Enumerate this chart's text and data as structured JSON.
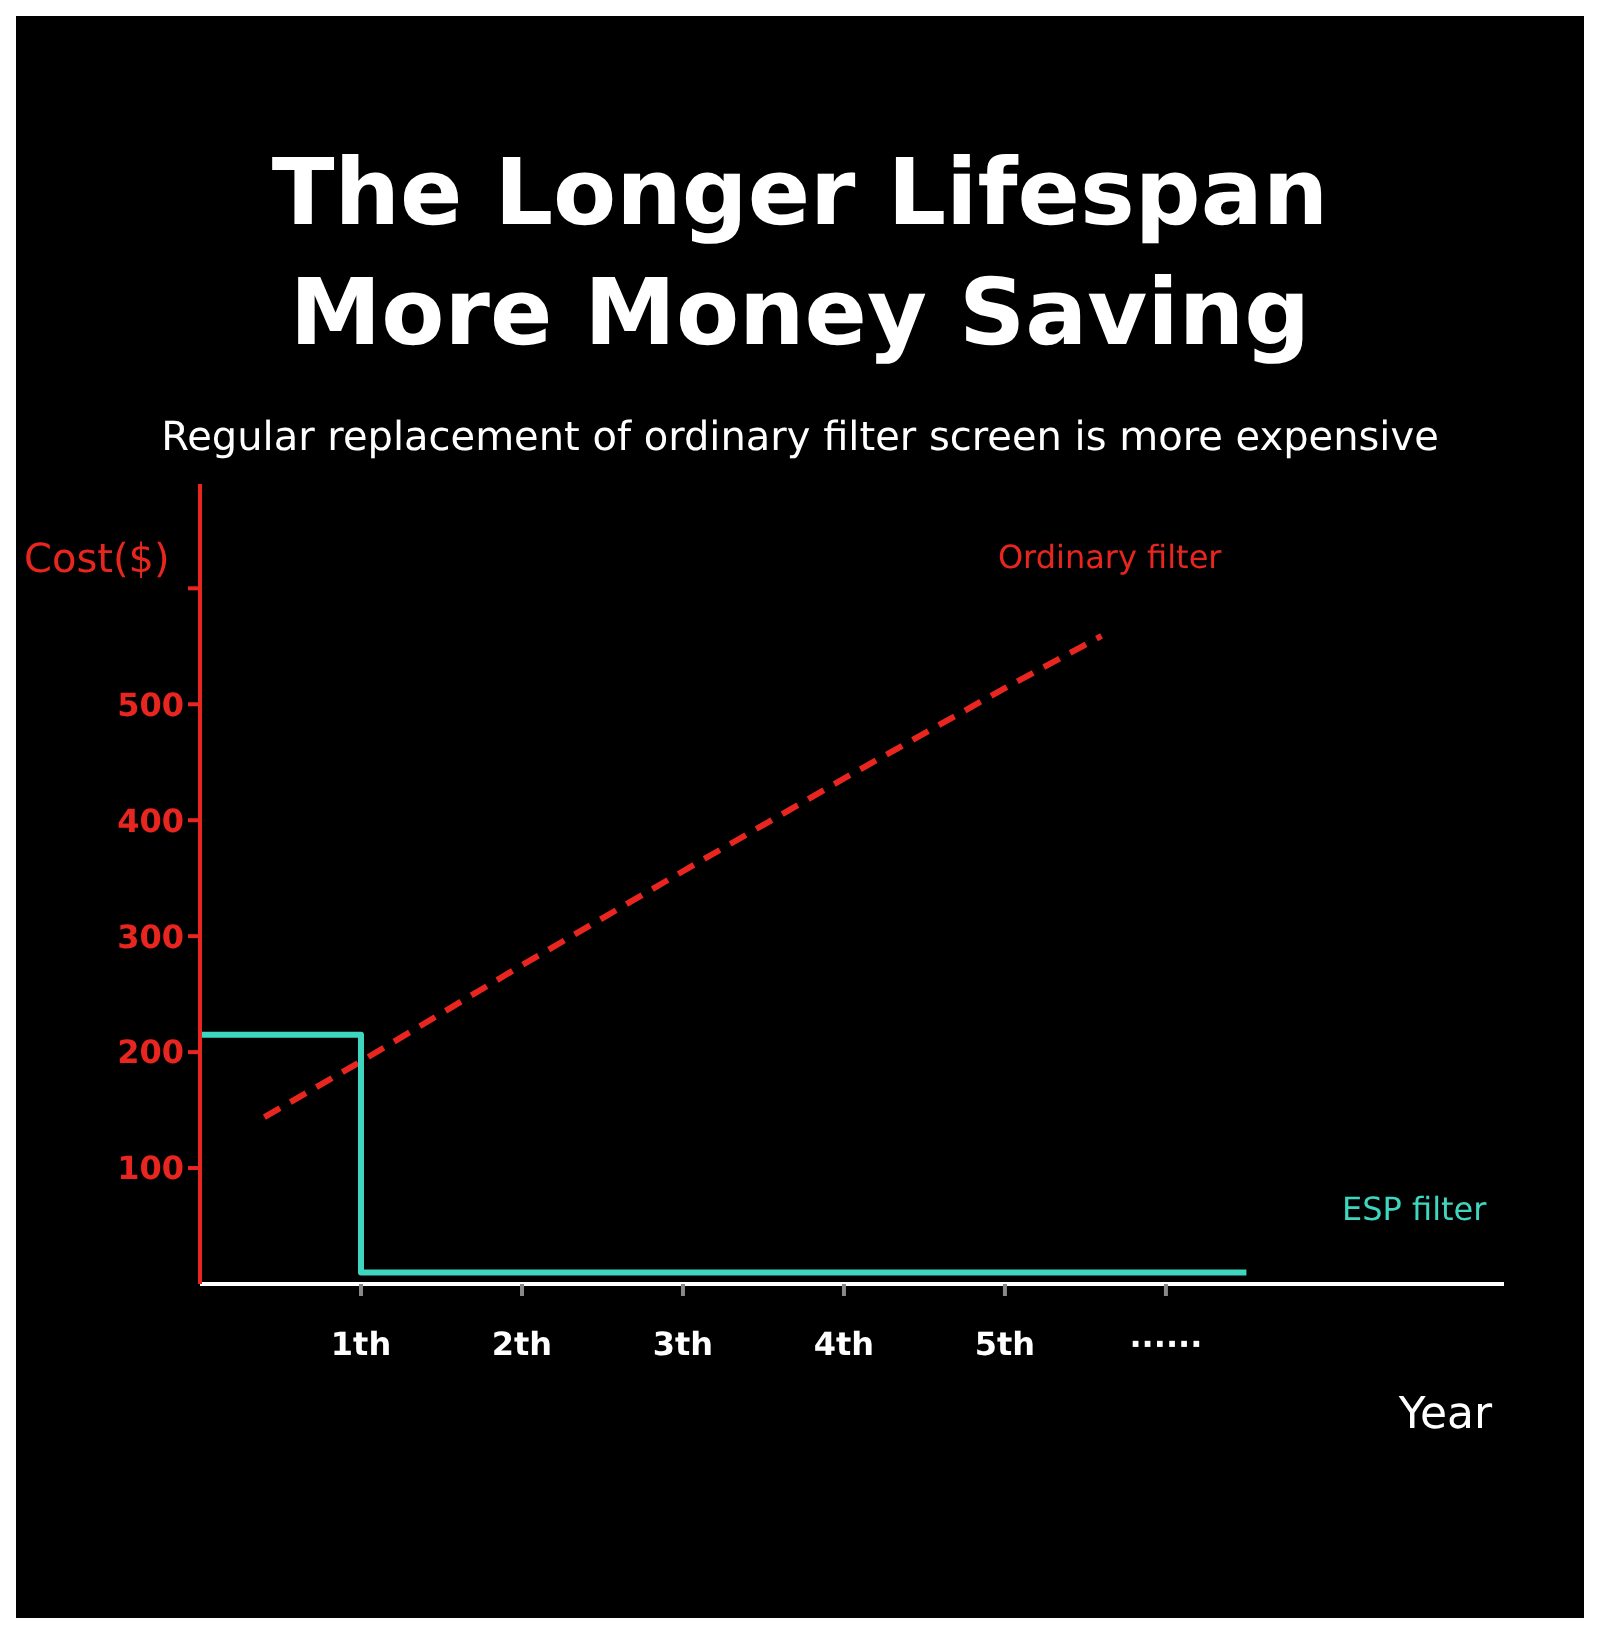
{
  "chart_data": {
    "type": "line",
    "title": "The Longer Lifespan More Money Saving",
    "subtitle": "Regular replacement of ordinary filter screen is more expensive",
    "xlabel": "Year",
    "ylabel": "Cost($)",
    "xlim": [
      0,
      8.1
    ],
    "xticks": [
      {
        "value": 1,
        "label": "1th"
      },
      {
        "value": 2,
        "label": "2th"
      },
      {
        "value": 3,
        "label": "3th"
      },
      {
        "value": 4,
        "label": "4th"
      },
      {
        "value": 5,
        "label": "5th"
      },
      {
        "value": 6,
        "label": "······"
      }
    ],
    "ylim": [
      0,
      690
    ],
    "yticks": [
      100,
      200,
      300,
      400,
      500,
      {
        "value": 600,
        "label": null
      }
    ],
    "marker": "none",
    "series": [
      {
        "name": "Ordinary filter",
        "line_style": "dashed",
        "color": "#e8261f",
        "x": [
          0.4,
          1,
          2,
          3,
          4,
          5,
          5.6
        ],
        "values": [
          144,
          192,
          275,
          356,
          436,
          514,
          559
        ]
      },
      {
        "name": "ESP filter",
        "type": "step",
        "line_style": "solid",
        "color": "#3fd6c0",
        "x": [
          0,
          1,
          6.5
        ],
        "values": [
          215,
          10,
          10
        ]
      }
    ]
  }
}
